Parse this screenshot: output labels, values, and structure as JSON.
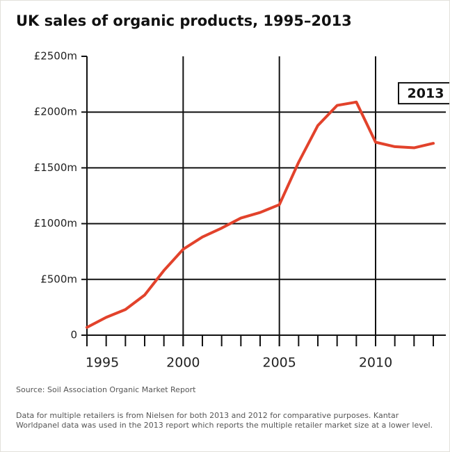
{
  "chart_data": {
    "type": "line",
    "title": "UK sales of organic products, 1995–2013",
    "x": [
      1995,
      1996,
      1997,
      1998,
      1999,
      2000,
      2001,
      2002,
      2003,
      2004,
      2005,
      2006,
      2007,
      2008,
      2009,
      2010,
      2011,
      2012,
      2013
    ],
    "series": [
      {
        "name": "UK sales of organic products",
        "color": "#e2422b",
        "values": [
          70,
          160,
          230,
          360,
          580,
          770,
          880,
          960,
          1050,
          1100,
          1170,
          1550,
          1880,
          2060,
          2090,
          1730,
          1690,
          1680,
          1720
        ]
      }
    ],
    "xlim": [
      1995,
      2013
    ],
    "xticks": [
      1995,
      2000,
      2005,
      2010
    ],
    "ylim": [
      0,
      2500
    ],
    "yticks": [
      {
        "value": 0,
        "label": "0"
      },
      {
        "value": 500,
        "label": "£500m"
      },
      {
        "value": 1000,
        "label": "£1000m"
      },
      {
        "value": 1500,
        "label": "£1500m"
      },
      {
        "value": 2000,
        "label": "£2000m"
      },
      {
        "value": 2500,
        "label": "£2500m"
      }
    ],
    "annotation": {
      "text": "2013",
      "x": 2013,
      "y": 1720
    },
    "grid": true,
    "source": "Source: Soil Association Organic Market Report",
    "note": "Data for multiple retailers is from Nielsen for both 2013 and 2012 for comparative purposes. Kantar Worldpanel data was used in the 2013 report which reports the multiple retailer market size at a lower level."
  }
}
